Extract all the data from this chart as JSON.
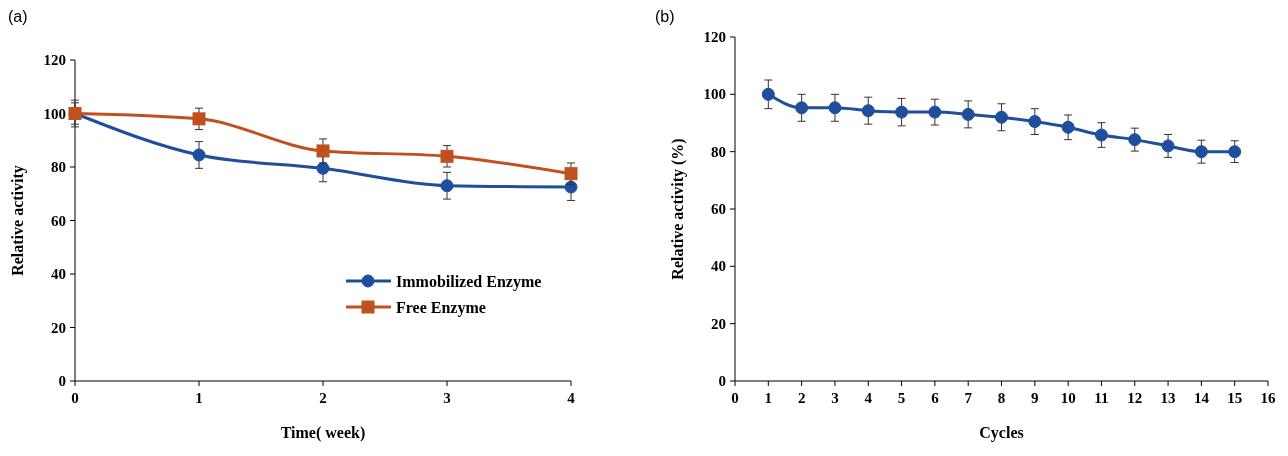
{
  "chart_data": [
    {
      "type": "line",
      "title": "(a)",
      "xlabel": "Time( week)",
      "ylabel": "Relative activity",
      "x": [
        0,
        1,
        2,
        3,
        4
      ],
      "xlim": [
        0,
        4
      ],
      "xticks": [
        0,
        1,
        2,
        3,
        4
      ],
      "ylim": [
        0,
        120
      ],
      "yticks": [
        0,
        20,
        40,
        60,
        80,
        100,
        120
      ],
      "legend": "bottom right",
      "grid": false,
      "series": [
        {
          "name": "Immobilized Enzyme",
          "color": "#1f4e9c",
          "marker": "circle",
          "values": [
            100,
            84.5,
            79.5,
            73,
            72.5
          ],
          "errors": [
            5,
            5,
            5,
            5,
            5
          ]
        },
        {
          "name": "Free Enzyme",
          "color": "#c0501e",
          "marker": "square",
          "values": [
            100,
            98,
            86,
            84,
            77.5
          ],
          "errors": [
            4,
            4,
            4.5,
            4,
            4
          ]
        }
      ]
    },
    {
      "type": "line",
      "title": "(b)",
      "xlabel": "Cycles",
      "ylabel": "Relative activity (%)",
      "x": [
        1,
        2,
        3,
        4,
        5,
        6,
        7,
        8,
        9,
        10,
        11,
        12,
        13,
        14,
        15
      ],
      "xlim": [
        0,
        16
      ],
      "xticks": [
        0,
        1,
        2,
        3,
        4,
        5,
        6,
        7,
        8,
        9,
        10,
        11,
        12,
        13,
        14,
        15,
        16
      ],
      "ylim": [
        0,
        120
      ],
      "yticks": [
        0,
        20,
        40,
        60,
        80,
        100,
        120
      ],
      "legend": false,
      "grid": false,
      "series": [
        {
          "color": "#1f4e9c",
          "marker": "circle",
          "values": [
            100,
            95.3,
            95.3,
            94.3,
            93.8,
            93.8,
            93,
            92,
            90.5,
            88.5,
            85.8,
            84.2,
            82,
            80,
            80
          ],
          "errors": [
            5,
            4.7,
            4.7,
            4.7,
            4.8,
            4.5,
            4.7,
            4.7,
            4.5,
            4.3,
            4.3,
            4,
            4,
            4,
            3.8
          ]
        }
      ]
    }
  ]
}
